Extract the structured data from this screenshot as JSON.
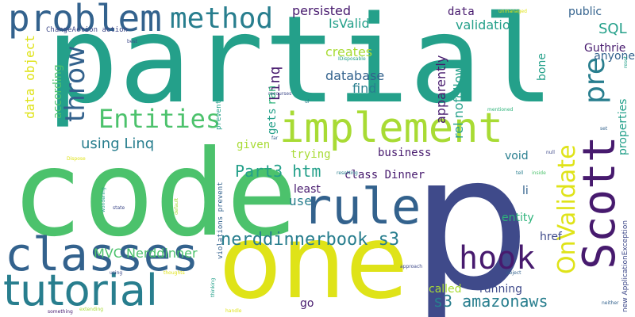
{
  "palette": {
    "background": "#ffffff",
    "purple": "#471a6e",
    "indigo": "#3f4a8a",
    "blue": "#33628d",
    "teal": "#287e8e",
    "cyan": "#24a08a",
    "green": "#2db37a",
    "lime": "#4cc26c",
    "yellow_green": "#a8db34",
    "yellow": "#dfe318"
  },
  "words": [
    {
      "text": "partial"
    },
    {
      "text": "code"
    },
    {
      "text": "one"
    },
    {
      "text": "p"
    },
    {
      "text": "implement"
    },
    {
      "text": "Scott"
    },
    {
      "text": "rule"
    },
    {
      "text": "classes"
    },
    {
      "text": "tutorial"
    },
    {
      "text": "problem"
    },
    {
      "text": "method"
    },
    {
      "text": "hook"
    },
    {
      "text": "OnValidate"
    },
    {
      "text": "Entities"
    },
    {
      "text": "throw"
    },
    {
      "text": "pre"
    },
    {
      "text": "nerddinnerbook s3"
    },
    {
      "text": "s3 amazonaws"
    },
    {
      "text": "Part3 htm"
    },
    {
      "text": "using Linq"
    },
    {
      "text": "MVC Nerddinner"
    },
    {
      "text": "Linq"
    },
    {
      "text": "data object"
    },
    {
      "text": "SQL"
    },
    {
      "text": "apparently"
    },
    {
      "text": "rel nofollow"
    },
    {
      "text": "persisted"
    },
    {
      "text": "IsValid"
    },
    {
      "text": "validation"
    },
    {
      "text": "creates"
    },
    {
      "text": "database"
    },
    {
      "text": "find"
    },
    {
      "text": "data"
    },
    {
      "text": "public"
    },
    {
      "text": "Guthrie"
    },
    {
      "text": "anyone"
    },
    {
      "text": "bone"
    },
    {
      "text": "properties"
    },
    {
      "text": "business"
    },
    {
      "text": "trying"
    },
    {
      "text": "void"
    },
    {
      "text": "class Dinner"
    },
    {
      "text": "least"
    },
    {
      "text": "use"
    },
    {
      "text": "given"
    },
    {
      "text": "gets"
    },
    {
      "text": "ran"
    },
    {
      "text": "according"
    },
    {
      "text": "entity"
    },
    {
      "text": "li"
    },
    {
      "text": "href"
    },
    {
      "text": "called"
    },
    {
      "text": "running"
    },
    {
      "text": "go"
    },
    {
      "text": "ChangeAction action"
    },
    {
      "text": "violations prevent"
    },
    {
      "text": "prevent saving"
    },
    {
      "text": "new ApplicationException"
    },
    {
      "text": "IDisposable"
    },
    {
      "text": "unmanaged"
    },
    {
      "text": "best"
    },
    {
      "text": "recourses"
    },
    {
      "text": "ul"
    },
    {
      "text": "far"
    },
    {
      "text": "mentioned"
    },
    {
      "text": "set"
    },
    {
      "text": "null"
    },
    {
      "text": "tell"
    },
    {
      "text": "inside"
    },
    {
      "text": "resetting"
    },
    {
      "text": "object"
    },
    {
      "text": "approach"
    },
    {
      "text": "using"
    },
    {
      "text": "thoughts"
    },
    {
      "text": "thinking"
    },
    {
      "text": "state"
    },
    {
      "text": "wondering"
    },
    {
      "text": "default"
    },
    {
      "text": "Dispose"
    },
    {
      "text": "something"
    },
    {
      "text": "extending"
    },
    {
      "text": "handle"
    },
    {
      "text": "neither"
    },
    {
      "text": "reset"
    }
  ]
}
